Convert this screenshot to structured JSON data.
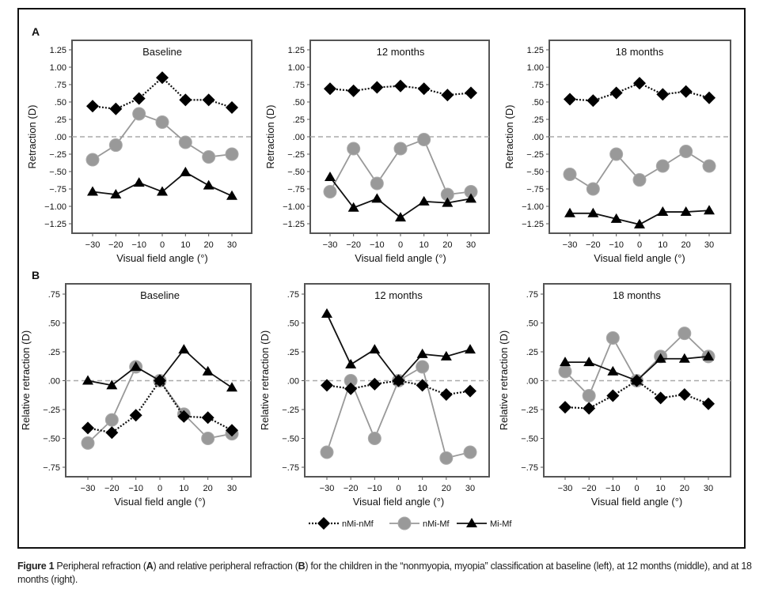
{
  "figure": {
    "caption_label": "Figure 1",
    "caption_parts": [
      "Peripheral refraction (",
      "A",
      ") and relative peripheral refraction (",
      "B",
      ") for the children in the “nonmyopia, myopia” classification at baseline (left), at 12 months (middle), and at 18 months (right)."
    ]
  },
  "legend": {
    "placement": "bottom-center",
    "entries": [
      {
        "name": "nMi-nMf",
        "marker": "diamond",
        "line": "dotted",
        "color": "#111111"
      },
      {
        "name": "nMi-Mf",
        "marker": "circle",
        "line": "solid",
        "color": "#999999"
      },
      {
        "name": "Mi-Mf",
        "marker": "triangle",
        "line": "solid",
        "color": "#111111"
      }
    ]
  },
  "chart_data": [
    {
      "type": "line",
      "panel_label": "A",
      "title": "Baseline",
      "xlabel": "Visual field angle (°)",
      "ylabel": "Retraction (D)",
      "x": [
        -30,
        -20,
        -10,
        0,
        10,
        20,
        30
      ],
      "xticks": [
        "−30",
        "−20",
        "−10",
        "0",
        "10",
        "20",
        "30"
      ],
      "ylim": [
        -1.4,
        1.4
      ],
      "yticks": [
        1.25,
        1.0,
        0.75,
        0.5,
        0.25,
        0,
        -0.25,
        -0.5,
        -0.75,
        -1.0,
        -1.25
      ],
      "ytick_labels": [
        "1.25",
        "1.00",
        ".75",
        ".50",
        ".25",
        ".00",
        "−.25",
        "−.50",
        "−.75",
        "−1.00",
        "−1.25"
      ],
      "reference_line": 0,
      "series": [
        {
          "name": "nMi-nMf",
          "values": [
            0.44,
            0.4,
            0.55,
            0.85,
            0.53,
            0.53,
            0.42
          ]
        },
        {
          "name": "nMi-Mf",
          "values": [
            -0.33,
            -0.12,
            0.33,
            0.21,
            -0.08,
            -0.29,
            -0.25
          ]
        },
        {
          "name": "Mi-Mf",
          "values": [
            -0.79,
            -0.83,
            -0.66,
            -0.79,
            -0.51,
            -0.7,
            -0.85
          ]
        }
      ]
    },
    {
      "type": "line",
      "panel_label": "",
      "title": "12 months",
      "xlabel": "Visual field angle (°)",
      "ylabel": "Retraction (D)",
      "x": [
        -30,
        -20,
        -10,
        0,
        10,
        20,
        30
      ],
      "xticks": [
        "−30",
        "−20",
        "−10",
        "0",
        "10",
        "20",
        "30"
      ],
      "ylim": [
        -1.4,
        1.4
      ],
      "yticks": [
        1.25,
        1.0,
        0.75,
        0.5,
        0.25,
        0,
        -0.25,
        -0.5,
        -0.75,
        -1.0,
        -1.25
      ],
      "ytick_labels": [
        "1.25",
        "1.00",
        ".75",
        ".50",
        ".25",
        ".00",
        "−.25",
        "−.50",
        "−.75",
        "−1.00",
        "−1.25"
      ],
      "reference_line": 0,
      "series": [
        {
          "name": "nMi-nMf",
          "values": [
            0.69,
            0.66,
            0.71,
            0.73,
            0.69,
            0.6,
            0.63
          ]
        },
        {
          "name": "nMi-Mf",
          "values": [
            -0.79,
            -0.17,
            -0.67,
            -0.17,
            -0.04,
            -0.83,
            -0.79
          ]
        },
        {
          "name": "Mi-Mf",
          "values": [
            -0.58,
            -1.02,
            -0.89,
            -1.16,
            -0.93,
            -0.95,
            -0.89
          ]
        }
      ]
    },
    {
      "type": "line",
      "panel_label": "",
      "title": "18 months",
      "xlabel": "Visual field angle (°)",
      "ylabel": "Retraction (D)",
      "x": [
        -30,
        -20,
        -10,
        0,
        10,
        20,
        30
      ],
      "xticks": [
        "−30",
        "−20",
        "−10",
        "0",
        "10",
        "20",
        "30"
      ],
      "ylim": [
        -1.4,
        1.4
      ],
      "yticks": [
        1.25,
        1.0,
        0.75,
        0.5,
        0.25,
        0,
        -0.25,
        -0.5,
        -0.75,
        -1.0,
        -1.25
      ],
      "ytick_labels": [
        "1.25",
        "1.00",
        ".75",
        ".50",
        ".25",
        ".00",
        "−.25",
        "−.50",
        "−.75",
        "−1.00",
        "−1.25"
      ],
      "reference_line": 0,
      "series": [
        {
          "name": "nMi-nMf",
          "values": [
            0.54,
            0.52,
            0.63,
            0.77,
            0.61,
            0.65,
            0.56
          ]
        },
        {
          "name": "nMi-Mf",
          "values": [
            -0.54,
            -0.75,
            -0.25,
            -0.62,
            -0.42,
            -0.21,
            -0.42
          ]
        },
        {
          "name": "Mi-Mf",
          "values": [
            -1.1,
            -1.1,
            -1.18,
            -1.26,
            -1.08,
            -1.08,
            -1.06
          ]
        }
      ]
    },
    {
      "type": "line",
      "panel_label": "B",
      "title": "Baseline",
      "xlabel": "Visual field angle (°)",
      "ylabel": "Relative retraction (D)",
      "x": [
        -30,
        -20,
        -10,
        0,
        10,
        20,
        30
      ],
      "xticks": [
        "−30",
        "−20",
        "−10",
        "0",
        "10",
        "20",
        "30"
      ],
      "ylim": [
        -0.81,
        0.81
      ],
      "yticks": [
        0.75,
        0.5,
        0.25,
        0,
        -0.25,
        -0.5,
        -0.75
      ],
      "ytick_labels": [
        ".75",
        ".50",
        ".25",
        ".00",
        "−.25",
        "−.50",
        "−.75"
      ],
      "reference_line": 0,
      "series": [
        {
          "name": "nMi-nMf",
          "values": [
            -0.41,
            -0.45,
            -0.3,
            0,
            -0.31,
            -0.32,
            -0.43
          ]
        },
        {
          "name": "nMi-Mf",
          "values": [
            -0.54,
            -0.34,
            0.12,
            0,
            -0.29,
            -0.5,
            -0.46
          ]
        },
        {
          "name": "Mi-Mf",
          "values": [
            0.0,
            -0.04,
            0.12,
            0,
            0.27,
            0.08,
            -0.06
          ]
        }
      ]
    },
    {
      "type": "line",
      "panel_label": "",
      "title": "12 months",
      "xlabel": "Visual field angle (°)",
      "ylabel": "Relative retraction (D)",
      "x": [
        -30,
        -20,
        -10,
        0,
        10,
        20,
        30
      ],
      "xticks": [
        "−30",
        "−20",
        "−10",
        "0",
        "10",
        "20",
        "30"
      ],
      "ylim": [
        -0.81,
        0.81
      ],
      "yticks": [
        0.75,
        0.5,
        0.25,
        0,
        -0.25,
        -0.5,
        -0.75
      ],
      "ytick_labels": [
        ".75",
        ".50",
        ".25",
        ".00",
        "−.25",
        "−.50",
        "−.75"
      ],
      "reference_line": 0,
      "series": [
        {
          "name": "nMi-nMf",
          "values": [
            -0.04,
            -0.07,
            -0.03,
            0,
            -0.04,
            -0.12,
            -0.09
          ]
        },
        {
          "name": "nMi-Mf",
          "values": [
            -0.62,
            0.0,
            -0.5,
            0,
            0.12,
            -0.67,
            -0.62
          ]
        },
        {
          "name": "Mi-Mf",
          "values": [
            0.58,
            0.14,
            0.27,
            0,
            0.23,
            0.21,
            0.27
          ]
        }
      ]
    },
    {
      "type": "line",
      "panel_label": "",
      "title": "18 months",
      "xlabel": "Visual field angle (°)",
      "ylabel": "Relative retraction (D)",
      "x": [
        -30,
        -20,
        -10,
        0,
        10,
        20,
        30
      ],
      "xticks": [
        "−30",
        "−20",
        "−10",
        "0",
        "10",
        "20",
        "30"
      ],
      "ylim": [
        -0.81,
        0.81
      ],
      "yticks": [
        0.75,
        0.5,
        0.25,
        0,
        -0.25,
        -0.5,
        -0.75
      ],
      "ytick_labels": [
        ".75",
        ".50",
        ".25",
        ".00",
        "−.25",
        "−.50",
        "−.75"
      ],
      "reference_line": 0,
      "series": [
        {
          "name": "nMi-nMf",
          "values": [
            -0.23,
            -0.24,
            -0.13,
            0,
            -0.15,
            -0.12,
            -0.2
          ]
        },
        {
          "name": "nMi-Mf",
          "values": [
            0.08,
            -0.13,
            0.37,
            0,
            0.21,
            0.41,
            0.21
          ]
        },
        {
          "name": "Mi-Mf",
          "values": [
            0.16,
            0.16,
            0.08,
            0,
            0.19,
            0.19,
            0.21
          ]
        }
      ]
    }
  ]
}
